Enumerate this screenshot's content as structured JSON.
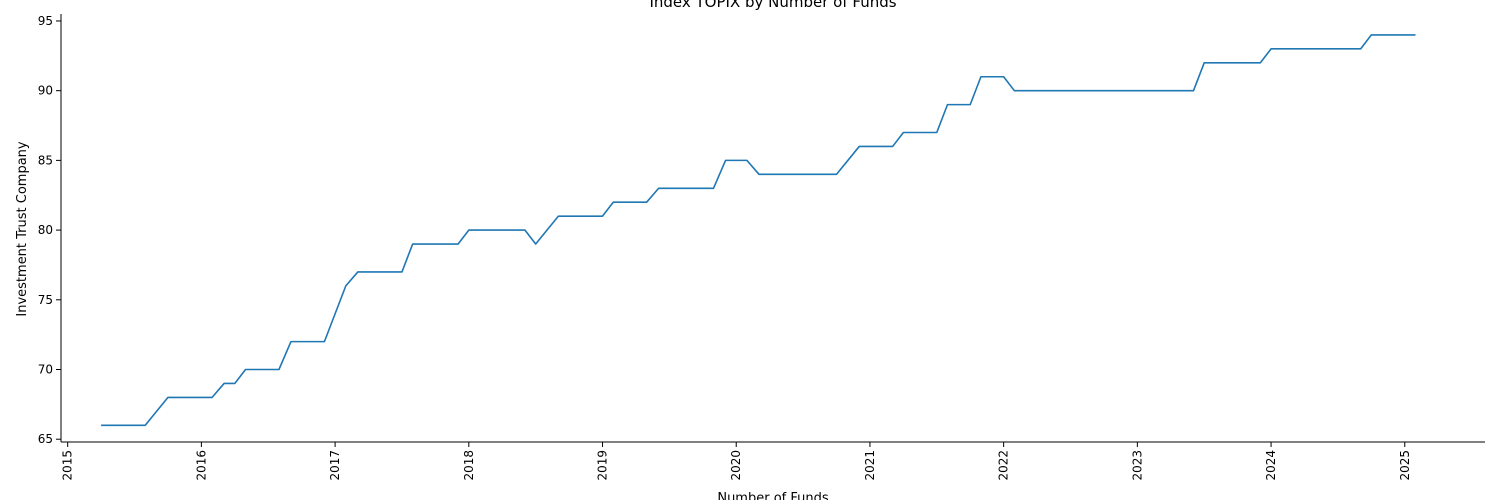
{
  "chart_data": {
    "type": "line",
    "title": "Index TOPIX by Number of Funds",
    "xlabel": "Number of Funds",
    "ylabel": "Investment Trust Company",
    "xlim": [
      2014.95,
      2025.6
    ],
    "ylim": [
      64.8,
      95.5
    ],
    "x_ticks": [
      2015,
      2016,
      2017,
      2018,
      2019,
      2020,
      2021,
      2022,
      2023,
      2024,
      2025
    ],
    "x_tick_labels": [
      "2015",
      "2016",
      "2017",
      "2018",
      "2019",
      "2020",
      "2021",
      "2022",
      "2023",
      "2024",
      "2025"
    ],
    "y_ticks": [
      65,
      70,
      75,
      80,
      85,
      90,
      95
    ],
    "y_tick_labels": [
      "65",
      "70",
      "75",
      "80",
      "85",
      "90",
      "95"
    ],
    "grid": false,
    "series_color": "#1f77b4",
    "series": [
      {
        "name": "Investment Trust Company",
        "x": [
          2015.25,
          2015.58,
          2015.75,
          2016.08,
          2016.17,
          2016.25,
          2016.33,
          2016.58,
          2016.67,
          2016.92,
          2017.08,
          2017.17,
          2017.5,
          2017.58,
          2017.92,
          2018.0,
          2018.42,
          2018.5,
          2018.67,
          2019.0,
          2019.08,
          2019.33,
          2019.42,
          2019.83,
          2019.92,
          2020.08,
          2020.17,
          2020.75,
          2020.92,
          2021.17,
          2021.25,
          2021.5,
          2021.58,
          2021.75,
          2021.83,
          2022.0,
          2022.08,
          2023.42,
          2023.5,
          2023.92,
          2024.0,
          2024.67,
          2024.75,
          2025.08
        ],
        "y": [
          66,
          66,
          68,
          68,
          69,
          69,
          70,
          70,
          72,
          72,
          76,
          77,
          77,
          79,
          79,
          80,
          80,
          79,
          81,
          81,
          82,
          82,
          83,
          83,
          85,
          85,
          84,
          84,
          86,
          86,
          87,
          87,
          89,
          89,
          91,
          91,
          90,
          90,
          92,
          92,
          93,
          93,
          94,
          94
        ]
      }
    ]
  }
}
